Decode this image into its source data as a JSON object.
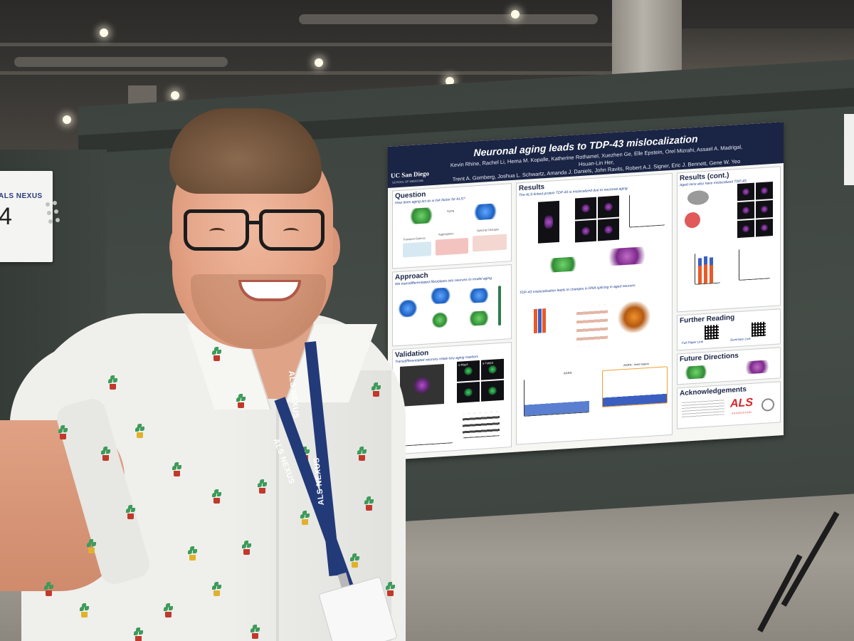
{
  "booth": {
    "brand": "ALS NEXUS",
    "number": "4"
  },
  "poster": {
    "title": "Neuronal aging leads to TDP-43 mislocalization",
    "authors_line1": "Kevin Rhine, Rachel Li, Hema M. Kopalle, Katherine Rothamel, Xuezhen Ge, Elle Epstein, Orel Mizrahi, Assael A. Madrigal, Hsuan-Lin Her,",
    "authors_line2": "Trent A. Gomberg, Joshua L. Schwartz, Amanda J. Daniels, John Ravits, Robert A.J. Signer, Eric J. Bennett, Gene W. Yeo",
    "institution": "UC San Diego",
    "institution_sub": "SCHOOL OF MEDICINE",
    "sections": {
      "question": {
        "title": "Question",
        "subtitle": "How does aging act as a risk factor for ALS?",
        "labels": [
          "Aging",
          "Transport Defects",
          "Aggregation",
          "Splicing Changes"
        ]
      },
      "approach": {
        "title": "Approach",
        "subtitle": "We transdifferentiated fibroblasts into neurons to model aging"
      },
      "validation": {
        "title": "Validation",
        "subtitle": "Transdifferentiated neurons retain key aging markers",
        "labels": [
          "α-Map2",
          "α-Tubβ3"
        ]
      },
      "results": {
        "title": "Results",
        "subtitle": "The ALS-linked protein TDP-43 is mislocalized due to neuronal aging",
        "sub2": "TDP-43 mislocalization leads to changes in RNA splicing in aged neurons",
        "labels": [
          "AGRN",
          "AGRN - inset region"
        ]
      },
      "results_cont": {
        "title": "Results (cont.)",
        "subtitle": "Aged mice also have mislocalized TDP-43"
      },
      "further_reading": {
        "title": "Further Reading",
        "links": [
          "Full Paper Link",
          "Summary Link"
        ]
      },
      "future_directions": {
        "title": "Future Directions"
      },
      "acknowledgements": {
        "title": "Acknowledgements",
        "logo": "ALS",
        "logo_sub": "ASSOCIATION"
      }
    }
  },
  "lanyard": {
    "text": "ALS NEXUS"
  },
  "colors": {
    "poster_header": "#1a2444",
    "als_red": "#d8262b",
    "lanyard": "#233a78",
    "panel": "#424944"
  }
}
